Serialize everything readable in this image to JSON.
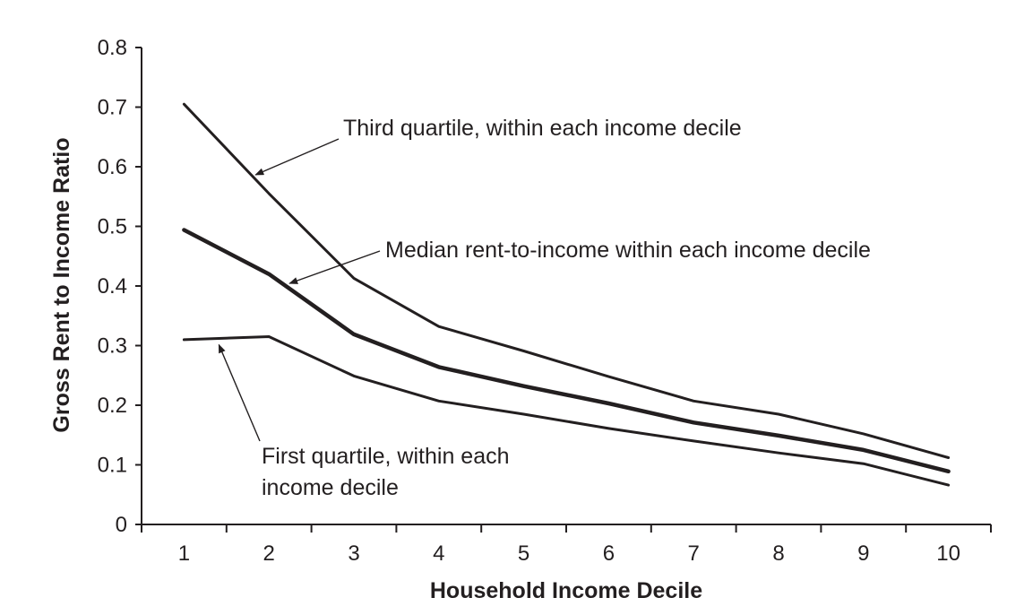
{
  "chart_data": {
    "type": "line",
    "x": [
      1,
      2,
      3,
      4,
      5,
      6,
      7,
      8,
      9,
      10
    ],
    "series": [
      {
        "label": "Third quartile, within each income decile",
        "values": [
          0.705,
          0.555,
          0.413,
          0.332,
          0.291,
          0.248,
          0.207,
          0.185,
          0.152,
          0.112
        ]
      },
      {
        "label": "Median rent-to-income within each income decile",
        "values": [
          0.494,
          0.42,
          0.319,
          0.264,
          0.232,
          0.203,
          0.171,
          0.149,
          0.125,
          0.089
        ]
      },
      {
        "label": "First quartile, within each income decile",
        "values": [
          0.31,
          0.315,
          0.249,
          0.207,
          0.185,
          0.161,
          0.14,
          0.12,
          0.102,
          0.066
        ]
      }
    ],
    "annotations": [
      "Third quartile, within each income decile",
      "Median rent-to-income within each income decile",
      "First quartile, within each",
      "income decile"
    ],
    "xlabel": "Household Income Decile",
    "ylabel": "Gross Rent to Income Ratio",
    "xticks": [
      "1",
      "2",
      "3",
      "4",
      "5",
      "6",
      "7",
      "8",
      "9",
      "10"
    ],
    "yticks": [
      "0",
      "0.1",
      "0.2",
      "0.3",
      "0.4",
      "0.5",
      "0.6",
      "0.7",
      "0.8"
    ],
    "xlim": [
      0.5,
      10.5
    ],
    "ylim": [
      0,
      0.8
    ],
    "grid": false,
    "legend": "none (series identified by arrow annotations)",
    "line_color": "#231f20"
  }
}
